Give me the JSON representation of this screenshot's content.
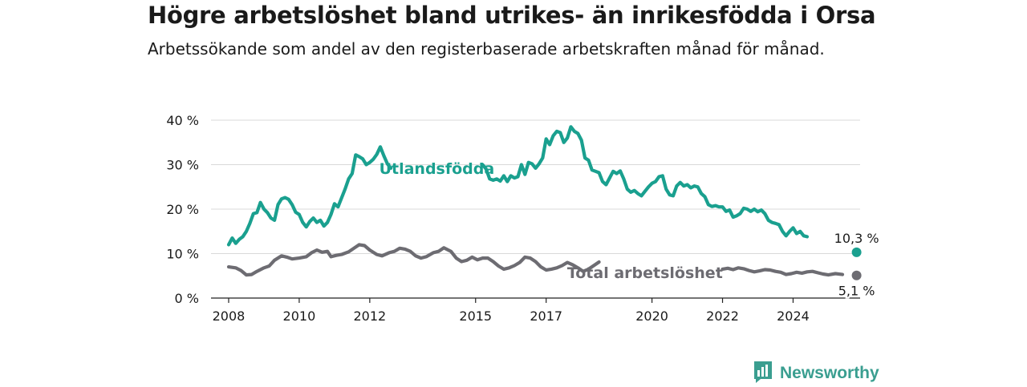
{
  "header": {
    "title": "Högre arbetslöshet bland utrikes- än inrikesfödda i Orsa",
    "subtitle": "Arbetssökande som andel av den registerbaserade arbetskraften månad för månad."
  },
  "brand": {
    "name": "Newsworthy",
    "color": "#3a9e90"
  },
  "chart_data": {
    "type": "line",
    "ylim": [
      0,
      40
    ],
    "xlim": [
      2007.5,
      2025.9
    ],
    "y_ticks": [
      {
        "value": 0,
        "label": "0 %"
      },
      {
        "value": 10,
        "label": "10 %"
      },
      {
        "value": 20,
        "label": "20 %"
      },
      {
        "value": 30,
        "label": "30 %"
      },
      {
        "value": 40,
        "label": "40 %"
      }
    ],
    "x_ticks": [
      {
        "value": 2008,
        "label": "2008"
      },
      {
        "value": 2010,
        "label": "2010"
      },
      {
        "value": 2012,
        "label": "2012"
      },
      {
        "value": 2015,
        "label": "2015"
      },
      {
        "value": 2017,
        "label": "2017"
      },
      {
        "value": 2020,
        "label": "2020"
      },
      {
        "value": 2022,
        "label": "2022"
      },
      {
        "value": 2024,
        "label": "2024"
      }
    ],
    "grid": true,
    "series": [
      {
        "name": "Utlandsfödda",
        "color": "#1aa08f",
        "end_label": "10,3 %",
        "points": [
          [
            2008.0,
            12.0
          ],
          [
            2008.1,
            13.5
          ],
          [
            2008.2,
            12.3
          ],
          [
            2008.3,
            13.2
          ],
          [
            2008.4,
            13.8
          ],
          [
            2008.5,
            15.0
          ],
          [
            2008.6,
            16.8
          ],
          [
            2008.7,
            19.0
          ],
          [
            2008.8,
            19.2
          ],
          [
            2008.9,
            21.5
          ],
          [
            2009.0,
            20.0
          ],
          [
            2009.1,
            19.2
          ],
          [
            2009.2,
            18.0
          ],
          [
            2009.3,
            17.5
          ],
          [
            2009.4,
            21.0
          ],
          [
            2009.5,
            22.3
          ],
          [
            2009.6,
            22.6
          ],
          [
            2009.7,
            22.2
          ],
          [
            2009.8,
            21.0
          ],
          [
            2009.9,
            19.3
          ],
          [
            2010.0,
            18.8
          ],
          [
            2010.1,
            17.0
          ],
          [
            2010.2,
            16.0
          ],
          [
            2010.3,
            17.2
          ],
          [
            2010.4,
            18.0
          ],
          [
            2010.5,
            17.0
          ],
          [
            2010.6,
            17.5
          ],
          [
            2010.7,
            16.2
          ],
          [
            2010.8,
            17.0
          ],
          [
            2010.9,
            18.8
          ],
          [
            2011.0,
            21.2
          ],
          [
            2011.1,
            20.5
          ],
          [
            2011.2,
            22.5
          ],
          [
            2011.3,
            24.5
          ],
          [
            2011.4,
            26.8
          ],
          [
            2011.5,
            28.0
          ],
          [
            2011.6,
            32.2
          ],
          [
            2011.7,
            31.8
          ],
          [
            2011.8,
            31.3
          ],
          [
            2011.9,
            30.0
          ],
          [
            2012.0,
            30.5
          ],
          [
            2012.1,
            31.2
          ],
          [
            2012.2,
            32.3
          ],
          [
            2012.3,
            34.0
          ],
          [
            2012.4,
            32.0
          ],
          [
            2012.5,
            30.2
          ],
          [
            2012.6,
            29.2
          ]
        ],
        "points_2": [
          [
            2015.2,
            30.0
          ],
          [
            2015.3,
            29.0
          ],
          [
            2015.4,
            26.8
          ],
          [
            2015.5,
            26.5
          ],
          [
            2015.6,
            26.8
          ],
          [
            2015.7,
            26.3
          ],
          [
            2015.8,
            27.5
          ],
          [
            2015.9,
            26.2
          ],
          [
            2016.0,
            27.5
          ],
          [
            2016.1,
            27.0
          ],
          [
            2016.2,
            27.3
          ],
          [
            2016.3,
            30.0
          ],
          [
            2016.4,
            27.8
          ],
          [
            2016.5,
            30.5
          ],
          [
            2016.6,
            30.2
          ],
          [
            2016.7,
            29.2
          ],
          [
            2016.8,
            30.2
          ],
          [
            2016.9,
            31.5
          ],
          [
            2017.0,
            35.8
          ],
          [
            2017.1,
            34.5
          ],
          [
            2017.2,
            36.5
          ],
          [
            2017.3,
            37.5
          ],
          [
            2017.4,
            37.2
          ],
          [
            2017.5,
            35.0
          ],
          [
            2017.6,
            36.0
          ],
          [
            2017.7,
            38.5
          ],
          [
            2017.8,
            37.5
          ],
          [
            2017.9,
            37.0
          ],
          [
            2018.0,
            35.5
          ],
          [
            2018.1,
            31.5
          ],
          [
            2018.2,
            31.0
          ],
          [
            2018.3,
            28.8
          ],
          [
            2018.4,
            28.5
          ],
          [
            2018.5,
            28.2
          ],
          [
            2018.6,
            26.2
          ],
          [
            2018.7,
            25.5
          ],
          [
            2018.8,
            27.0
          ],
          [
            2018.9,
            28.5
          ],
          [
            2019.0,
            28.0
          ],
          [
            2019.1,
            28.6
          ],
          [
            2019.2,
            26.8
          ],
          [
            2019.3,
            24.5
          ],
          [
            2019.4,
            23.8
          ],
          [
            2019.5,
            24.2
          ],
          [
            2019.6,
            23.5
          ],
          [
            2019.7,
            23.0
          ],
          [
            2019.8,
            24.0
          ],
          [
            2019.9,
            25.0
          ],
          [
            2020.0,
            25.8
          ],
          [
            2020.1,
            26.2
          ],
          [
            2020.2,
            27.3
          ],
          [
            2020.3,
            27.5
          ],
          [
            2020.4,
            24.5
          ],
          [
            2020.5,
            23.2
          ],
          [
            2020.6,
            23.0
          ],
          [
            2020.7,
            25.2
          ],
          [
            2020.8,
            26.0
          ],
          [
            2020.9,
            25.2
          ],
          [
            2021.0,
            25.5
          ],
          [
            2021.1,
            24.8
          ],
          [
            2021.2,
            25.2
          ],
          [
            2021.3,
            25.0
          ],
          [
            2021.4,
            23.5
          ],
          [
            2021.5,
            22.8
          ],
          [
            2021.6,
            21.0
          ],
          [
            2021.7,
            20.6
          ],
          [
            2021.8,
            20.8
          ],
          [
            2021.9,
            20.5
          ],
          [
            2022.0,
            20.5
          ],
          [
            2022.1,
            19.5
          ],
          [
            2022.2,
            19.8
          ],
          [
            2022.3,
            18.2
          ],
          [
            2022.4,
            18.5
          ],
          [
            2022.5,
            19.0
          ],
          [
            2022.6,
            20.2
          ],
          [
            2022.7,
            20.0
          ],
          [
            2022.8,
            19.5
          ],
          [
            2022.9,
            20.0
          ],
          [
            2023.0,
            19.4
          ],
          [
            2023.1,
            19.8
          ],
          [
            2023.2,
            19.0
          ],
          [
            2023.3,
            17.5
          ],
          [
            2023.4,
            17.0
          ],
          [
            2023.5,
            16.8
          ],
          [
            2023.6,
            16.5
          ],
          [
            2023.7,
            15.0
          ],
          [
            2023.8,
            14.0
          ],
          [
            2023.9,
            15.0
          ],
          [
            2024.0,
            15.8
          ],
          [
            2024.1,
            14.5
          ],
          [
            2024.2,
            15.0
          ],
          [
            2024.3,
            14.0
          ],
          [
            2024.4,
            13.8
          ]
        ],
        "end_point": [
          2025.8,
          10.3
        ]
      },
      {
        "name": "Total arbetslöshet",
        "color": "#6d6c72",
        "end_label": "5,1 %",
        "points": [
          [
            2008.0,
            7.0
          ],
          [
            2008.2,
            6.8
          ],
          [
            2008.35,
            6.2
          ],
          [
            2008.5,
            5.2
          ],
          [
            2008.65,
            5.3
          ],
          [
            2008.8,
            6.0
          ],
          [
            2009.0,
            6.8
          ],
          [
            2009.15,
            7.2
          ],
          [
            2009.3,
            8.5
          ],
          [
            2009.5,
            9.5
          ],
          [
            2009.65,
            9.2
          ],
          [
            2009.8,
            8.8
          ],
          [
            2010.0,
            9.0
          ],
          [
            2010.2,
            9.3
          ],
          [
            2010.35,
            10.2
          ],
          [
            2010.5,
            10.8
          ],
          [
            2010.65,
            10.3
          ],
          [
            2010.8,
            10.5
          ],
          [
            2010.9,
            9.3
          ],
          [
            2011.05,
            9.6
          ],
          [
            2011.2,
            9.8
          ],
          [
            2011.4,
            10.4
          ],
          [
            2011.55,
            11.2
          ],
          [
            2011.7,
            12.0
          ],
          [
            2011.85,
            11.8
          ],
          [
            2012.0,
            10.8
          ],
          [
            2012.2,
            9.8
          ],
          [
            2012.35,
            9.5
          ],
          [
            2012.55,
            10.2
          ],
          [
            2012.7,
            10.5
          ],
          [
            2012.85,
            11.2
          ],
          [
            2013.0,
            11.0
          ],
          [
            2013.15,
            10.5
          ],
          [
            2013.3,
            9.5
          ],
          [
            2013.45,
            9.0
          ],
          [
            2013.6,
            9.3
          ],
          [
            2013.8,
            10.2
          ],
          [
            2013.95,
            10.5
          ],
          [
            2014.1,
            11.3
          ],
          [
            2014.3,
            10.5
          ],
          [
            2014.45,
            9.0
          ],
          [
            2014.6,
            8.2
          ],
          [
            2014.75,
            8.5
          ],
          [
            2014.9,
            9.2
          ],
          [
            2015.05,
            8.6
          ],
          [
            2015.2,
            9.0
          ],
          [
            2015.35,
            9.0
          ],
          [
            2015.5,
            8.2
          ],
          [
            2015.65,
            7.2
          ],
          [
            2015.8,
            6.5
          ],
          [
            2015.95,
            6.8
          ],
          [
            2016.1,
            7.3
          ],
          [
            2016.25,
            8.0
          ],
          [
            2016.4,
            9.2
          ],
          [
            2016.55,
            9.0
          ],
          [
            2016.7,
            8.2
          ],
          [
            2016.85,
            7.0
          ],
          [
            2017.0,
            6.3
          ],
          [
            2017.15,
            6.5
          ],
          [
            2017.3,
            6.8
          ],
          [
            2017.45,
            7.3
          ],
          [
            2017.6,
            8.0
          ],
          [
            2017.75,
            7.5
          ],
          [
            2017.9,
            6.8
          ],
          [
            2018.05,
            6.0
          ],
          [
            2018.2,
            6.5
          ],
          [
            2018.35,
            7.3
          ],
          [
            2018.5,
            8.1
          ]
        ],
        "points_2": [
          [
            2022.0,
            6.5
          ],
          [
            2022.15,
            6.7
          ],
          [
            2022.3,
            6.4
          ],
          [
            2022.45,
            6.8
          ],
          [
            2022.6,
            6.6
          ],
          [
            2022.75,
            6.2
          ],
          [
            2022.9,
            5.9
          ],
          [
            2023.05,
            6.1
          ],
          [
            2023.2,
            6.4
          ],
          [
            2023.35,
            6.3
          ],
          [
            2023.5,
            6.0
          ],
          [
            2023.65,
            5.8
          ],
          [
            2023.8,
            5.3
          ],
          [
            2023.95,
            5.5
          ],
          [
            2024.1,
            5.8
          ],
          [
            2024.25,
            5.6
          ],
          [
            2024.4,
            5.9
          ],
          [
            2024.55,
            6.0
          ],
          [
            2024.7,
            5.7
          ],
          [
            2024.85,
            5.4
          ],
          [
            2025.0,
            5.2
          ],
          [
            2025.2,
            5.5
          ],
          [
            2025.4,
            5.3
          ]
        ],
        "end_point": [
          2025.8,
          5.1
        ]
      }
    ],
    "series_labels": [
      {
        "series": 0,
        "text": "Utlandsfödda",
        "x": 2013.9,
        "y": 29.2
      },
      {
        "series": 1,
        "text": "Total arbetslöshet",
        "x": 2019.8,
        "y": 5.8
      }
    ]
  }
}
